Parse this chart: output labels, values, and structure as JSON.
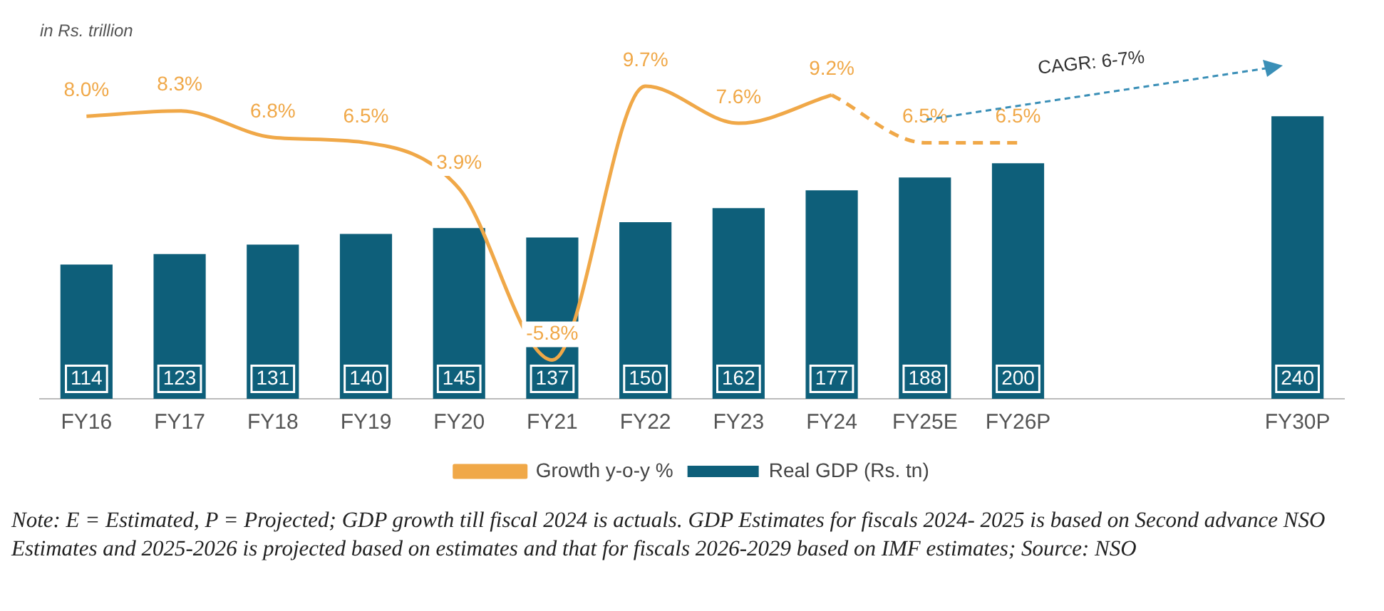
{
  "chart_data": {
    "type": "bar",
    "ylabel": "in Rs. trillion",
    "categories": [
      "FY16",
      "FY17",
      "FY18",
      "FY19",
      "FY20",
      "FY21",
      "FY22",
      "FY23",
      "FY24",
      "FY25E",
      "FY26P",
      null,
      null,
      "FY30P"
    ],
    "series": [
      {
        "name": "Real GDP (Rs. tn)",
        "color": "#0e5f7a",
        "values": [
          114,
          123,
          131,
          140,
          145,
          137,
          150,
          162,
          177,
          188,
          200,
          null,
          null,
          240
        ],
        "value_labels": [
          "114",
          "123",
          "131",
          "140",
          "145",
          "137",
          "150",
          "162",
          "177",
          "188",
          "200",
          null,
          null,
          "240"
        ]
      },
      {
        "name": "Growth y-o-y %",
        "type": "line",
        "axis": "y2",
        "color": "#f0a848",
        "line_style": "solid",
        "values": [
          8.0,
          8.3,
          6.8,
          6.5,
          3.9,
          -5.8,
          9.7,
          7.6,
          9.2,
          null,
          null,
          null,
          null,
          null
        ],
        "value_labels": [
          "8.0%",
          "8.3%",
          "6.8%",
          "6.5%",
          "3.9%",
          "-5.8%",
          "9.7%",
          "7.6%",
          "9.2%",
          null,
          null,
          null,
          null,
          null
        ]
      },
      {
        "type": "line",
        "axis": "y2",
        "color": "#f0a848",
        "line_style": "dashed",
        "values": [
          null,
          null,
          null,
          null,
          null,
          null,
          null,
          null,
          9.2,
          6.5,
          6.5,
          null,
          null,
          null
        ],
        "value_labels": [
          null,
          null,
          null,
          null,
          null,
          null,
          null,
          null,
          null,
          "6.5%",
          "6.5%",
          null,
          null,
          null
        ]
      }
    ],
    "legend": "bottom",
    "grid": false,
    "marker": "none",
    "annotations": [
      "CAGR: 6-7%",
      "Note: E = Estimated, P = Projected; GDP growth till fiscal 2024 is actuals. GDP Estimates for fiscals 2024- 2025 is based on Second advance NSO Estimates and 2025-2026 is projected based on estimates and that for fiscals 2026-2029 based on IMF estimates; Source: NSO"
    ]
  }
}
